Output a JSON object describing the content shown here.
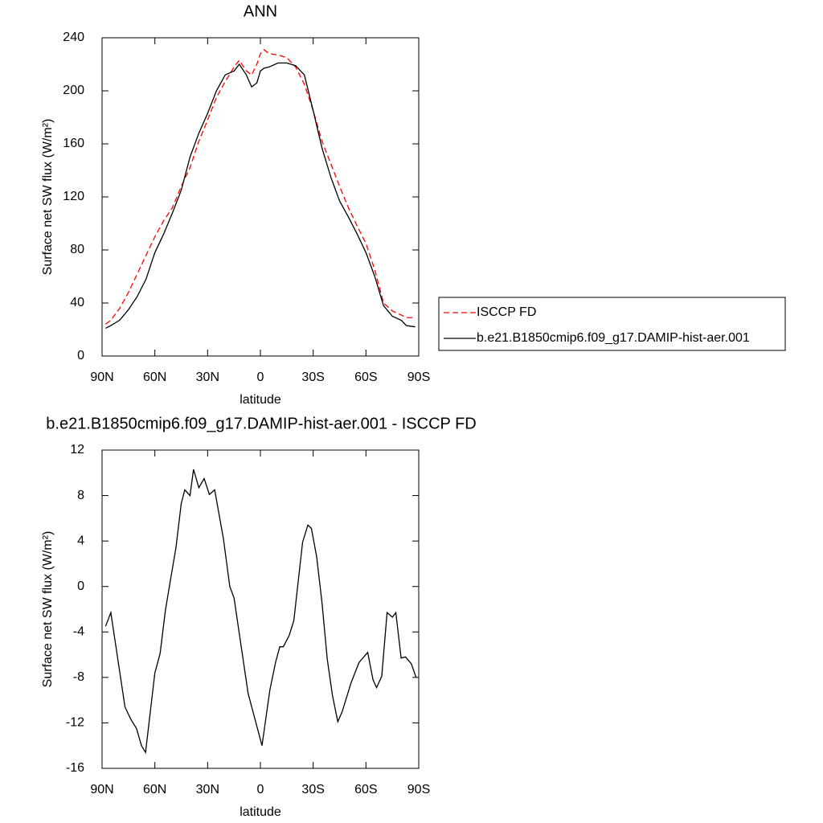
{
  "chart_data": [
    {
      "type": "line",
      "title": "ANN",
      "xlabel": "latitude",
      "ylabel": "Surface net SW flux (W/m²)",
      "x": [
        88,
        85,
        80,
        75,
        70,
        65,
        60,
        55,
        50,
        45,
        40,
        35,
        30,
        25,
        20,
        15,
        12,
        8,
        5,
        2,
        0,
        -2,
        -5,
        -10,
        -15,
        -20,
        -25,
        -30,
        -35,
        -40,
        -45,
        -50,
        -55,
        -60,
        -65,
        -70,
        -75,
        -80,
        -83,
        -88
      ],
      "series": [
        {
          "name": "ISCCP FD",
          "color": "#ff0000",
          "line_style": "dashed",
          "values": [
            24,
            27,
            36,
            48,
            62,
            76,
            90,
            102,
            112,
            128,
            142,
            162,
            178,
            195,
            207,
            218,
            223,
            215,
            212,
            220,
            228,
            231,
            228,
            227,
            225,
            218,
            205,
            185,
            162,
            145,
            128,
            112,
            98,
            85,
            65,
            40,
            34,
            31,
            29,
            29
          ]
        },
        {
          "name": "b.e21.B1850cmip6.f09_g17.DAMIP-hist-aer.001",
          "color": "#000000",
          "line_style": "solid",
          "values": [
            21,
            23,
            27,
            35,
            45,
            58,
            78,
            92,
            108,
            125,
            150,
            168,
            183,
            200,
            212,
            215,
            220,
            212,
            203,
            206,
            215,
            217,
            218,
            221,
            221,
            219,
            212,
            185,
            157,
            135,
            117,
            105,
            92,
            78,
            60,
            38,
            30,
            27,
            23,
            22
          ]
        }
      ],
      "xlim": [
        90,
        -90
      ],
      "xticks": [
        {
          "value": 90,
          "label": "90N"
        },
        {
          "value": 60,
          "label": "60N"
        },
        {
          "value": 30,
          "label": "30N"
        },
        0,
        {
          "value": -30,
          "label": "30S"
        },
        {
          "value": -60,
          "label": "60S"
        },
        {
          "value": -90,
          "label": "90S"
        }
      ],
      "ylim": [
        0,
        240
      ],
      "yticks": [
        0,
        40,
        80,
        120,
        160,
        200,
        240
      ],
      "grid": false,
      "legend": "right"
    },
    {
      "type": "line",
      "title": "b.e21.B1850cmip6.f09_g17.DAMIP-hist-aer.001 - ISCCP FD",
      "xlabel": "latitude",
      "ylabel": "Surface net SW flux (W/m²)",
      "x": [
        88,
        85,
        77,
        73.6,
        70.4,
        67.6,
        65.3,
        60,
        57,
        54,
        51,
        48,
        45,
        43,
        40,
        38,
        35,
        32,
        29,
        26,
        21,
        17.4,
        15,
        7,
        -0.9,
        -5.4,
        -8.6,
        -11,
        -13,
        -16.4,
        -19,
        -24,
        -27,
        -29,
        -32,
        -35,
        -38,
        -41,
        -44,
        -46.5,
        -51.5,
        -56,
        -61,
        -64,
        -66,
        -69,
        -72,
        -75,
        -77,
        -80,
        -82.5,
        -85.8,
        -88.5
      ],
      "values": [
        -3.5,
        -2.3,
        -10.6,
        -11.7,
        -12.5,
        -14,
        -14.6,
        -7.6,
        -5.9,
        -2.1,
        0.7,
        3.4,
        7.3,
        8.5,
        8,
        10.3,
        8.7,
        9.5,
        8.1,
        8.5,
        4.2,
        0,
        -1,
        -9.4,
        -14,
        -9.1,
        -6.7,
        -5.3,
        -5.3,
        -4.3,
        -3,
        3.9,
        5.4,
        5.1,
        2.6,
        -1.4,
        -6.4,
        -9.6,
        -11.9,
        -11,
        -8.5,
        -6.7,
        -5.8,
        -8.2,
        -8.9,
        -7.9,
        -2.3,
        -2.7,
        -2.3,
        -6.3,
        -6.2,
        -6.8,
        -8
      ],
      "color": "#000000",
      "xlim": [
        90,
        -90
      ],
      "xticks": [
        {
          "value": 90,
          "label": "90N"
        },
        {
          "value": 60,
          "label": "60N"
        },
        {
          "value": 30,
          "label": "30N"
        },
        0,
        {
          "value": -30,
          "label": "30S"
        },
        {
          "value": -60,
          "label": "60S"
        },
        {
          "value": -90,
          "label": "90S"
        }
      ],
      "ylim": [
        -16,
        12
      ],
      "yticks": [
        -16,
        -12,
        -8,
        -4,
        0,
        4,
        8,
        12
      ],
      "grid": false
    }
  ]
}
